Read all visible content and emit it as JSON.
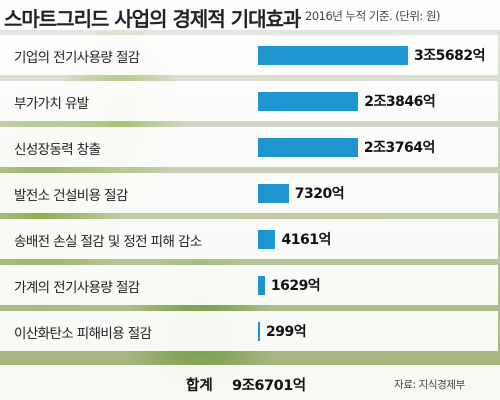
{
  "header": {
    "title": "스마트그리드 사업의 경제적 기대효과",
    "subtitle": "2016년 누적 기준. (단위: 원)"
  },
  "colors": {
    "bar": "#1f95cf"
  },
  "chart_data": {
    "type": "bar",
    "orientation": "horizontal",
    "unit": "억원",
    "categories": [
      "기업의 전기사용량 절감",
      "부가가치 유발",
      "신성장동력 창출",
      "발전소 건설비용 절감",
      "송배전 손실 절감 및 정전 피해 감소",
      "가계의 전기사용량 절감",
      "이산화탄소 피해비용 절감"
    ],
    "values": [
      35682,
      23846,
      23764,
      7320,
      4161,
      1629,
      299
    ],
    "value_labels": [
      "3조5682억",
      "2조3846억",
      "2조3764억",
      "7320억",
      "4161억",
      "1629억",
      "299억"
    ],
    "grid": false,
    "legend": "none"
  },
  "footer": {
    "total_label": "합계",
    "total_value": "9조6701억",
    "source": "자료: 지식경제부"
  }
}
